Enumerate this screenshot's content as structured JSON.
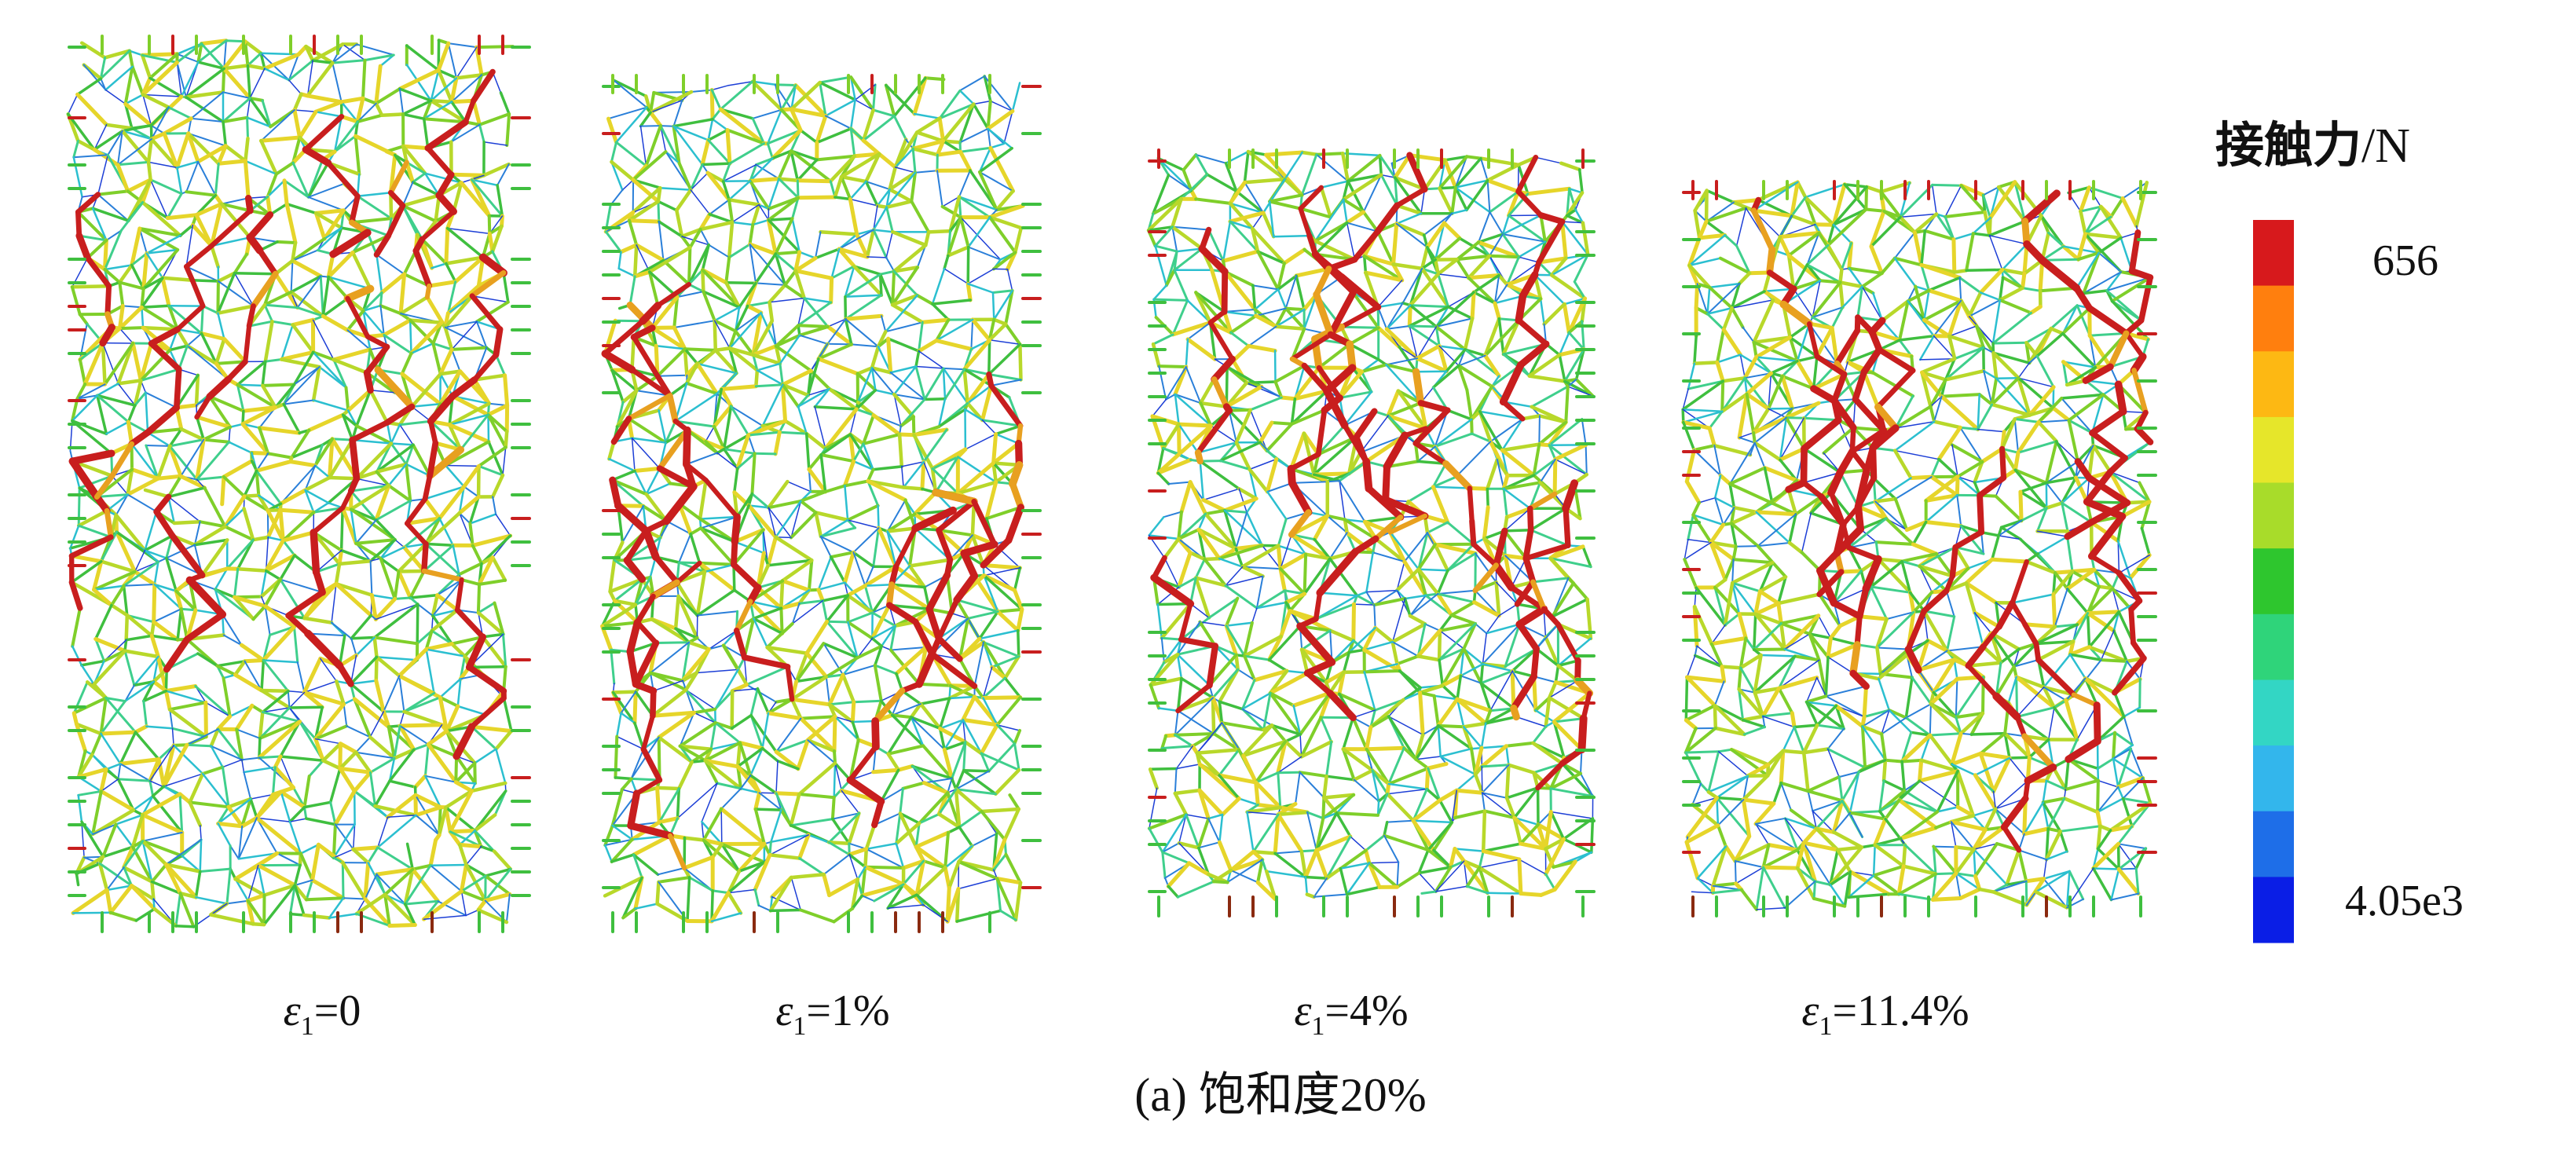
{
  "samples": [
    {
      "strain_symbol": "ε",
      "strain_sub": "1",
      "strain_value": "=0"
    },
    {
      "strain_symbol": "ε",
      "strain_sub": "1",
      "strain_value": "=1%"
    },
    {
      "strain_symbol": "ε",
      "strain_sub": "1",
      "strain_value": "=4%"
    },
    {
      "strain_symbol": "ε",
      "strain_sub": "1",
      "strain_value": "=11.4%"
    }
  ],
  "caption": "(a) 饱和度20%",
  "colorbar": {
    "title": "接触力",
    "unit": "/N",
    "max_label": "656",
    "min_label": "4.05e3",
    "colors": [
      "#d7191c",
      "#ff7f0e",
      "#fdb813",
      "#e6e62a",
      "#a8dc2a",
      "#2ec62e",
      "#2fd47a",
      "#33d6c4",
      "#33b6ec",
      "#1e6ee8",
      "#0a1ee6"
    ]
  }
}
